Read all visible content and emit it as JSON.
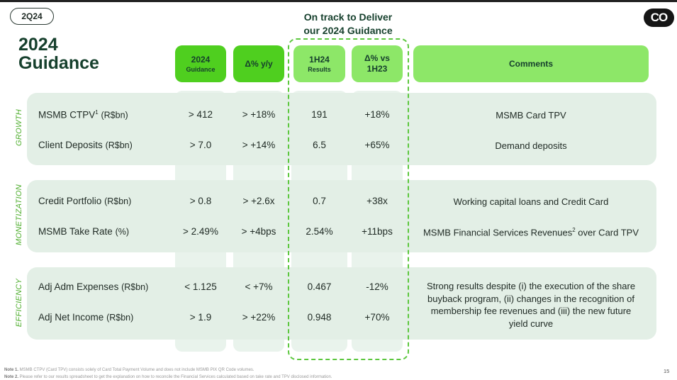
{
  "section_tag": "2Q24",
  "title_line1": "2024",
  "title_line2": "Guidance",
  "headline_line1": "On track to Deliver",
  "headline_line2": "our 2024 Guidance",
  "logo_text": "CO",
  "headers": {
    "guidance_main": "2024",
    "guidance_sub": "Guidance",
    "yoy": "Δ% y/y",
    "h1_main": "1H24",
    "h1_sub": "Results",
    "vs_line1": "Δ% vs",
    "vs_line2": "1H23",
    "comments": "Comments"
  },
  "categories": {
    "growth": "GROWTH",
    "monetization": "MONETIZATION",
    "efficiency": "EFFICIENCY"
  },
  "rows": [
    {
      "label": "MSMB CTPV",
      "sup": "1",
      "unit": "(R$bn)",
      "guidance": "> 412",
      "yoy": "> +18%",
      "result": "191",
      "vs": "+18%",
      "comment": "MSMB Card TPV"
    },
    {
      "label": "Client Deposits",
      "unit": "(R$bn)",
      "guidance": "> 7.0",
      "yoy": "> +14%",
      "result": "6.5",
      "vs": "+65%",
      "comment": "Demand deposits"
    },
    {
      "label": "Credit Portfolio",
      "unit": "(R$bn)",
      "guidance": "> 0.8",
      "yoy": "> +2.6x",
      "result": "0.7",
      "vs": "+38x",
      "comment": "Working capital loans and Credit Card"
    },
    {
      "label": "MSMB Take Rate",
      "unit": "(%)",
      "guidance": "> 2.49%",
      "yoy": "> +4bps",
      "result": "2.54%",
      "vs": "+11bps",
      "comment_a": "MSMB Financial Services Revenues",
      "comment_sup": "2",
      "comment_b": " over Card TPV"
    },
    {
      "label": "Adj Adm Expenses",
      "unit": "(R$bn)",
      "guidance": "< 1.125",
      "yoy": "< +7%",
      "result": "0.467",
      "vs": "-12%"
    },
    {
      "label": "Adj Net Income",
      "unit": "(R$bn)",
      "guidance": "> 1.9",
      "yoy": "> +22%",
      "result": "0.948",
      "vs": "+70%"
    }
  ],
  "efficiency_comment": [
    "Strong results despite (i) the execution of the share",
    "buyback program, (ii) changes in the recognition of",
    "membership fee revenues and (iii) the new future",
    "yield curve"
  ],
  "notes": {
    "note1_label": "Note 1.",
    "note1_text": " MSMB CTPV (Card TPV) consists solely of Card Total Payment Volume and does not include MSMB PIX QR Code volumes.",
    "note2_label": "Note 2.",
    "note2_text": " Please refer to our results spreadsheet to get the explanation on how to reconcile the Financial Services calculated based on take rate and TPV disclosed information."
  },
  "page_number": "15",
  "colors": {
    "accent_dark": "#4fcf1f",
    "accent_light": "#8de768",
    "title": "#16402d",
    "band": "#e3efe6"
  }
}
